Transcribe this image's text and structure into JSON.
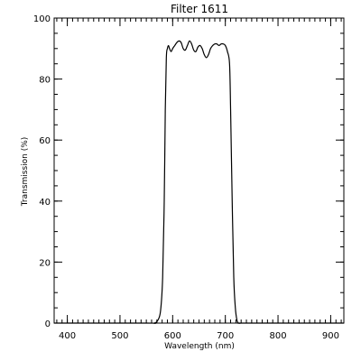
{
  "chart_data": {
    "type": "line",
    "title": "Filter  1611",
    "xlabel": "Wavelength (nm)",
    "ylabel": "Transmission (%)",
    "xlim": [
      375,
      925
    ],
    "ylim": [
      0,
      100
    ],
    "x_ticks": [
      400,
      500,
      600,
      700,
      800,
      900
    ],
    "x_tick_labels": [
      "400",
      "500",
      "600",
      "700",
      "800",
      "900"
    ],
    "y_ticks": [
      0,
      20,
      40,
      60,
      80,
      100
    ],
    "y_tick_labels": [
      "0",
      "20",
      "40",
      "60",
      "80",
      "100"
    ],
    "x_minor_step": 10,
    "y_minor_step": 5,
    "grid": false,
    "line_color": "#000000",
    "series": [
      {
        "x": [
          375,
          550,
          565,
          572,
          577,
          581,
          584,
          586,
          588,
          590,
          592,
          594,
          597,
          600,
          604,
          608,
          612,
          616,
          620,
          624,
          628,
          632,
          636,
          640,
          644,
          648,
          652,
          656,
          660,
          664,
          668,
          672,
          676,
          680,
          684,
          688,
          692,
          696,
          700,
          704,
          708,
          710,
          713,
          716,
          719,
          722,
          725,
          730,
          740,
          925
        ],
        "y": [
          0,
          0,
          0,
          1,
          4,
          15,
          40,
          70,
          87,
          90,
          91,
          90,
          89,
          90,
          91,
          92,
          92.5,
          92,
          90,
          89.5,
          91,
          92.5,
          91.5,
          89.5,
          89,
          90.5,
          91,
          90,
          88,
          87,
          88,
          90,
          91,
          91.5,
          91.5,
          91,
          91.5,
          91.5,
          91,
          89,
          85,
          70,
          40,
          15,
          5,
          1,
          0,
          0,
          0,
          0
        ]
      }
    ]
  }
}
